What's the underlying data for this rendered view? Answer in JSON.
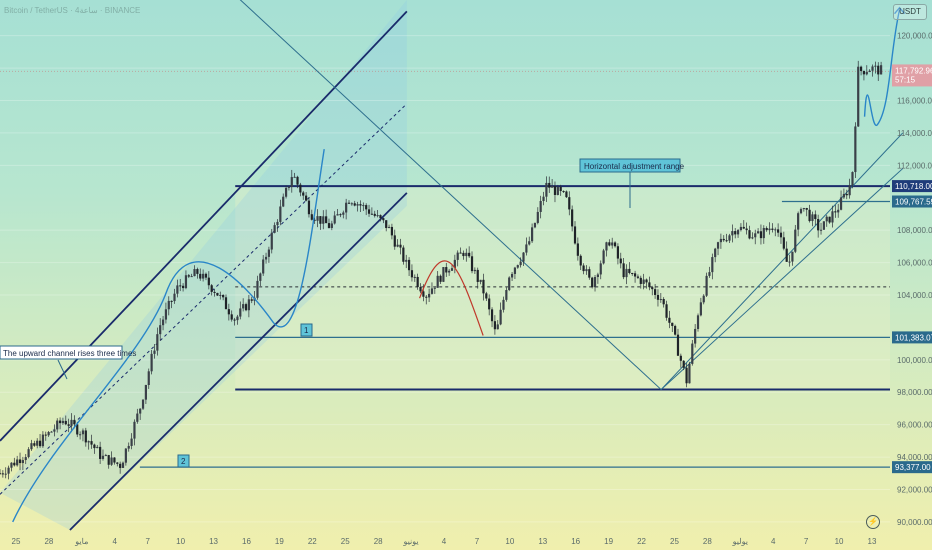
{
  "header": {
    "watermark": "Bitcoin / TetherUS · 4ساعة · BINANCE",
    "currency": "USDT"
  },
  "icons": {
    "flash": "flash-icon",
    "flash_glyph": "⚡"
  },
  "colors": {
    "channel": "#1a2b6b",
    "candle": "#2a2f36",
    "highlight_line": "#2e6f8e",
    "price_tag": "#e0a0a6",
    "level_tag": "#1f3c7a",
    "curve": "#2a86c8",
    "curve_red": "#c0392b"
  },
  "chart_data": {
    "type": "candlestick",
    "symbol": "Bitcoin / TetherUS",
    "timeframe": "4ساعة",
    "exchange": "BINANCE",
    "ylim": [
      89500,
      122200
    ],
    "x_ticks": [
      "25",
      "28",
      "مايو",
      "4",
      "7",
      "10",
      "13",
      "16",
      "19",
      "22",
      "25",
      "28",
      "يونيو",
      "4",
      "7",
      "10",
      "13",
      "16",
      "19",
      "22",
      "25",
      "28",
      "يوليو",
      "4",
      "7",
      "10",
      "13"
    ],
    "y_ticks": [
      {
        "value": 120000,
        "label": "120,000.00"
      },
      {
        "value": 118000,
        "label": "118,000.00"
      },
      {
        "value": 116000,
        "label": "116,000.00"
      },
      {
        "value": 114000,
        "label": "114,000.00"
      },
      {
        "value": 112000,
        "label": "112,000.00"
      },
      {
        "value": 108000,
        "label": "108,000.00"
      },
      {
        "value": 106000,
        "label": "106,000.00"
      },
      {
        "value": 104000,
        "label": "104,000.00"
      },
      {
        "value": 100000,
        "label": "100,000.00"
      },
      {
        "value": 98000,
        "label": "98,000.00"
      },
      {
        "value": 96000,
        "label": "96,000.00"
      },
      {
        "value": 94000,
        "label": "94,000.00"
      },
      {
        "value": 92000,
        "label": "92,000.00"
      },
      {
        "value": 90000,
        "label": "90,000.00"
      }
    ],
    "price_path": [
      [
        0,
        93000
      ],
      [
        4,
        94200
      ],
      [
        7,
        95200
      ],
      [
        10,
        96300
      ],
      [
        13,
        95500
      ],
      [
        16,
        94000
      ],
      [
        19,
        93500
      ],
      [
        22,
        97000
      ],
      [
        25,
        102000
      ],
      [
        28,
        104500
      ],
      [
        31,
        105400
      ],
      [
        34,
        104200
      ],
      [
        37,
        102500
      ],
      [
        40,
        104000
      ],
      [
        43,
        108000
      ],
      [
        46,
        111500
      ],
      [
        49,
        109000
      ],
      [
        52,
        108200
      ],
      [
        55,
        110000
      ],
      [
        58,
        109200
      ],
      [
        61,
        108200
      ],
      [
        64,
        105800
      ],
      [
        67,
        104000
      ],
      [
        70,
        105500
      ],
      [
        73,
        106700
      ],
      [
        76,
        104300
      ],
      [
        78,
        101500
      ],
      [
        80,
        105200
      ],
      [
        83,
        107000
      ],
      [
        86,
        110800
      ],
      [
        89,
        110000
      ],
      [
        91,
        106500
      ],
      [
        93,
        104600
      ],
      [
        96,
        107500
      ],
      [
        98,
        105400
      ],
      [
        101,
        104900
      ],
      [
        104,
        103800
      ],
      [
        106,
        101500
      ],
      [
        108,
        98700
      ],
      [
        110,
        103400
      ],
      [
        113,
        107200
      ],
      [
        116,
        108200
      ],
      [
        119,
        107600
      ],
      [
        122,
        108400
      ],
      [
        124,
        105700
      ],
      [
        126,
        109600
      ],
      [
        129,
        108000
      ],
      [
        132,
        109500
      ],
      [
        134,
        111000
      ],
      [
        135,
        117800
      ],
      [
        137,
        118000
      ],
      [
        139,
        117800
      ]
    ],
    "levels": [
      {
        "value": 110718,
        "label": "110,718.00",
        "style": "dark"
      },
      {
        "value": 109767.59,
        "label": "109,767.59",
        "style": "highlight"
      },
      {
        "value": 101383.07,
        "label": "101,383.07",
        "style": "highlight"
      },
      {
        "value": 98165,
        "label": "",
        "style": "dark"
      },
      {
        "value": 93377,
        "label": "93,377.00",
        "style": "highlight"
      }
    ],
    "last_price": {
      "value": 117792.96,
      "label": "117,792.96",
      "countdown": "57:15"
    },
    "annotations": [
      {
        "text": "The upward channel rises three times"
      },
      {
        "text": "Horizontal adjustment range"
      },
      {
        "text": "1"
      },
      {
        "text": "2"
      }
    ]
  }
}
